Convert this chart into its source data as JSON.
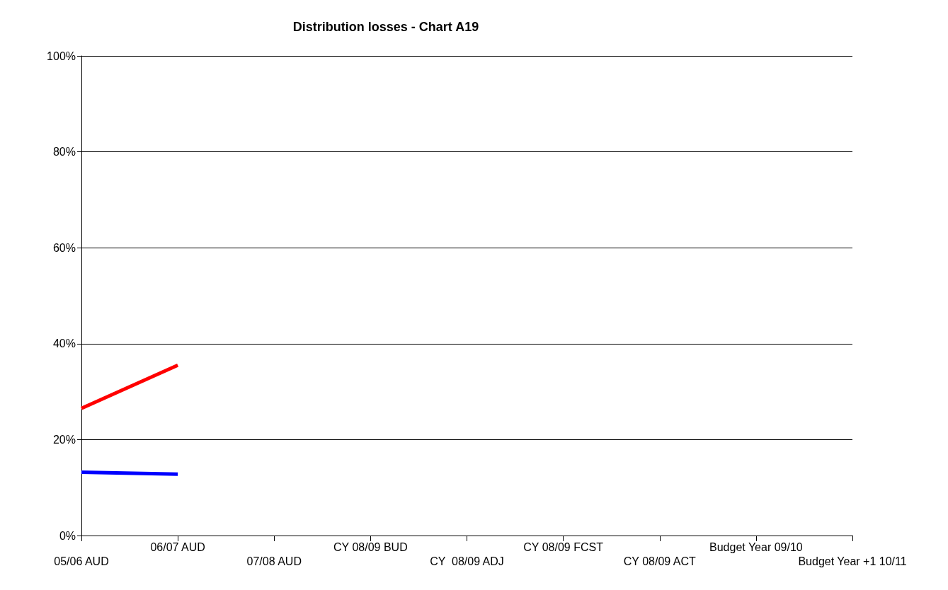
{
  "chart_data": {
    "type": "line",
    "title": "Distribution losses - Chart A19",
    "categories": [
      "05/06 AUD",
      "06/07 AUD",
      "07/08 AUD",
      "CY 08/09 BUD",
      "CY  08/09 ADJ",
      "CY 08/09 FCST",
      "CY 08/09 ACT",
      "Budget Year 09/10",
      "Budget Year +1 10/11"
    ],
    "series": [
      {
        "color": "#ff0000",
        "values": [
          26.5,
          35.5,
          null,
          null,
          null,
          null,
          null,
          null,
          null
        ]
      },
      {
        "color": "#0000ff",
        "values": [
          13.2,
          12.8,
          null,
          null,
          null,
          null,
          null,
          null,
          null
        ]
      }
    ],
    "ylim": [
      0,
      100
    ],
    "yticks": [
      {
        "value": 0,
        "label": "0%"
      },
      {
        "value": 20,
        "label": "20%"
      },
      {
        "value": 40,
        "label": "40%"
      },
      {
        "value": 60,
        "label": "60%"
      },
      {
        "value": 80,
        "label": "80%"
      },
      {
        "value": 100,
        "label": "100%"
      }
    ],
    "grid": "y",
    "marker": "none",
    "line_style": "solid"
  }
}
